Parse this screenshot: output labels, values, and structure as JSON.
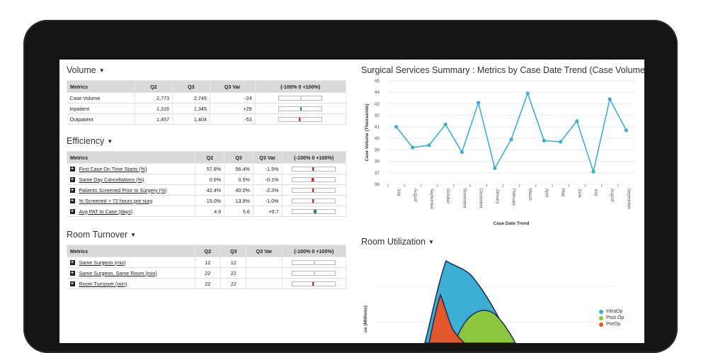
{
  "volume": {
    "title": "Volume",
    "headers": [
      "Metrics",
      "Q2",
      "Q3",
      "Q3 Var",
      "(-100% 0 +100%)"
    ],
    "rows": [
      {
        "metric": "Case Volume",
        "q2": "2,773",
        "q3": "2,749",
        "var": "-24",
        "var_frac": 0.0,
        "color": "#cccccc"
      },
      {
        "metric": "Inpatient",
        "q2": "1,316",
        "q3": "1,345",
        "var": "+29",
        "var_frac": 0.02,
        "color": "#2e8b57"
      },
      {
        "metric": "Outpatient",
        "q2": "1,457",
        "q3": "1,404",
        "var": "-53",
        "var_frac": -0.03,
        "color": "#d62728"
      }
    ]
  },
  "efficiency": {
    "title": "Efficiency",
    "headers": [
      "Metrics",
      "Q2",
      "Q3",
      "Q3 Var",
      "(-100% 0 +100%)"
    ],
    "rows": [
      {
        "metric": "First Case On Time Starts (%)",
        "q2": "57.8%",
        "q3": "56.4%",
        "var": "-1.5%",
        "var_frac": -0.015,
        "color": "#d62728"
      },
      {
        "metric": "Same Day Cancellations (%)",
        "q2": "0.6%",
        "q3": "0.5%",
        "var": "-0.1%",
        "var_frac": -0.12,
        "color": "#d62728"
      },
      {
        "metric": "Patients Screened Prior to Surgery (%)",
        "q2": "42.4%",
        "q3": "40.0%",
        "var": "-2.3%",
        "var_frac": -0.023,
        "color": "#d62728"
      },
      {
        "metric": "% Screened > 72 hours pre surg",
        "q2": "15.0%",
        "q3": "13.9%",
        "var": "-1.0%",
        "var_frac": -0.03,
        "color": "#d62728"
      },
      {
        "metric": "Avg PAT to Case (days)",
        "q2": "4.9",
        "q3": "5.6",
        "var": "+0.7",
        "var_frac": 0.14,
        "color": "#2e8b57"
      }
    ]
  },
  "room_turnover": {
    "title": "Room Turnover",
    "headers": [
      "Metrics",
      "Q2",
      "Q3",
      "Q3 Var",
      "(-100% 0 +100%)"
    ],
    "rows": [
      {
        "metric": "Same Surgeon (min)",
        "q2": "12",
        "q3": "12",
        "var": "",
        "var_frac": 0.0,
        "color": "#cccccc"
      },
      {
        "metric": "Same Surgeon, Same Room (min)",
        "q2": "22",
        "q3": "22",
        "var": "",
        "var_frac": 0.0,
        "color": "#cccccc"
      },
      {
        "metric": "Room Turnover (min)",
        "q2": "22",
        "q3": "22",
        "var": "",
        "var_frac": -0.01,
        "color": "#d62728"
      }
    ]
  },
  "trend": {
    "title": "Surgical Services Summary : Metrics by Case Date Trend (Case Volume)"
  },
  "room_utilization": {
    "title": "Room Utilization",
    "ylabel": "us (Millions)",
    "legend": [
      {
        "name": "IntraOp",
        "color": "#3daed3"
      },
      {
        "name": "Post Op",
        "color": "#8cc63f"
      },
      {
        "name": "PreOp",
        "color": "#e2572b"
      }
    ]
  },
  "chart_data": {
    "type": "line",
    "title": "Surgical Services Summary : Metrics by Case Date Trend (Case Volume)",
    "xlabel": "Case Date Trend",
    "ylabel": "Case Volume (Thousands)",
    "ylim": [
      36,
      45
    ],
    "yticks": [
      36,
      37,
      38,
      39,
      40,
      41,
      42,
      43,
      44,
      45
    ],
    "grid": true,
    "color": "#3daed3",
    "categories": [
      "July",
      "August",
      "September",
      "October",
      "November",
      "December",
      "January",
      "February",
      "March",
      "April",
      "May",
      "June",
      "July",
      "August",
      "September"
    ],
    "values": [
      41.0,
      39.2,
      39.4,
      41.2,
      38.8,
      43.1,
      37.4,
      39.9,
      43.9,
      39.8,
      39.7,
      41.5,
      37.1,
      43.4,
      40.7
    ]
  }
}
